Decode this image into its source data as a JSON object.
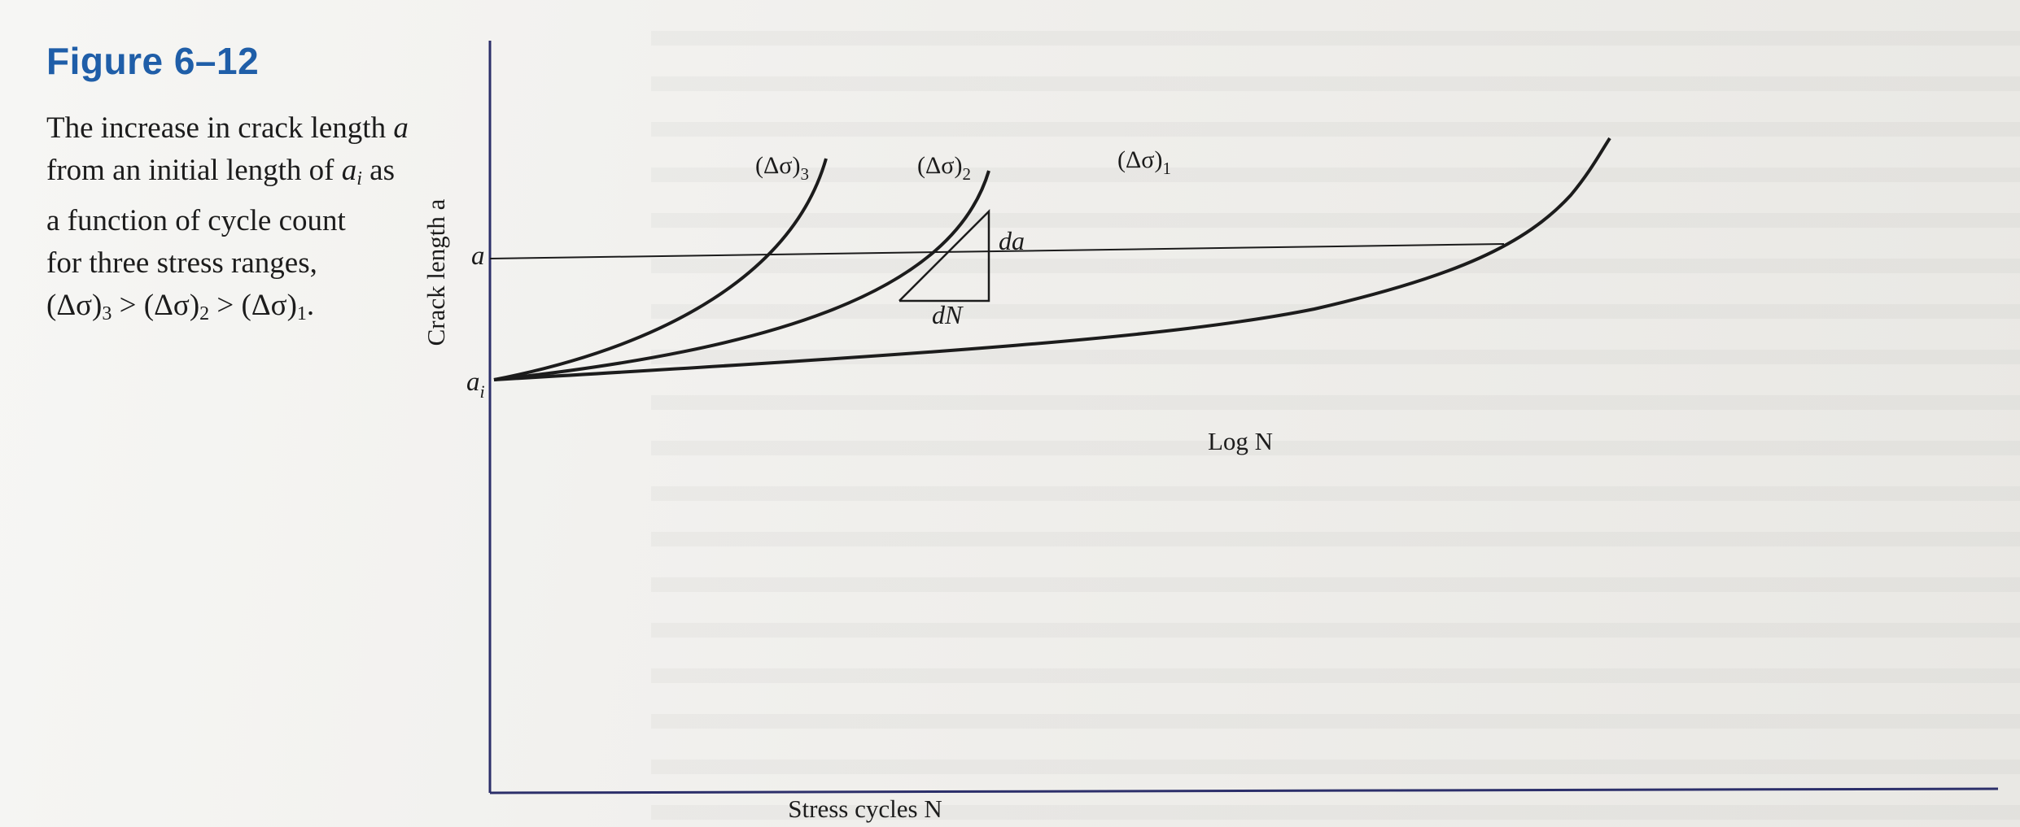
{
  "figure": {
    "label": "Figure 6–12",
    "caption_lines": [
      [
        "The increase in crack length ",
        "a"
      ],
      [
        "from an initial length of ",
        "a",
        "i",
        " as"
      ],
      [
        "a function of cycle count"
      ],
      [
        "for three stress ranges,"
      ],
      [
        "(Δσ)",
        "3",
        " > (Δσ)",
        "2",
        " > (Δσ)",
        "1",
        "."
      ]
    ]
  },
  "chart_data": {
    "type": "line",
    "xlabel": "Stress cycles N",
    "ylabel": "Crack length a",
    "x_axis_end_label": "Log N",
    "y_tick_labels": {
      "a": "a",
      "ai": "ai"
    },
    "series": [
      {
        "name": "(Δσ)3",
        "prefix": "(Δσ)",
        "sub": "3"
      },
      {
        "name": "(Δσ)2",
        "prefix": "(Δσ)",
        "sub": "2"
      },
      {
        "name": "(Δσ)1",
        "prefix": "(Δσ)",
        "sub": "1"
      }
    ],
    "annotations": {
      "da": "da",
      "dN": "dN"
    },
    "colors": {
      "ink": "#1c1c1c",
      "figure_label": "#1f5ea8"
    }
  }
}
